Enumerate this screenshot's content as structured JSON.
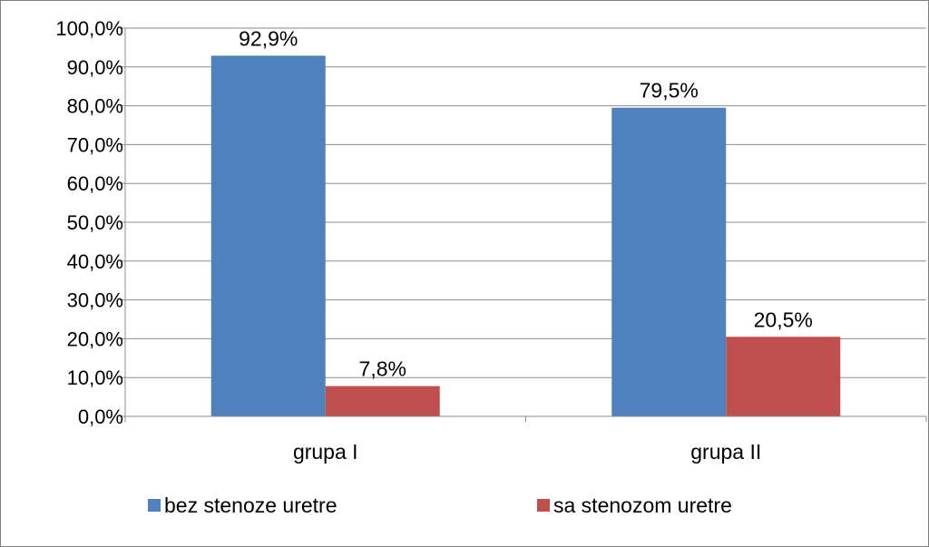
{
  "chart_data": {
    "type": "bar",
    "title": "",
    "xlabel": "",
    "ylabel": "",
    "categories": [
      "grupa I",
      "grupa II"
    ],
    "series": [
      {
        "name": "bez stenoze uretre",
        "color": "#4f81bd",
        "values": [
          92.9,
          79.5
        ],
        "labels": [
          "92,9%",
          "79,5%"
        ]
      },
      {
        "name": "sa stenozom uretre",
        "color": "#c0504d",
        "values": [
          7.8,
          20.5
        ],
        "labels": [
          "7,8%",
          "20,5%"
        ]
      }
    ],
    "ylim": [
      0,
      100
    ],
    "yticks": [
      {
        "value": 0,
        "label": "0,0%"
      },
      {
        "value": 10,
        "label": "10,0%"
      },
      {
        "value": 20,
        "label": "20,0%"
      },
      {
        "value": 30,
        "label": "30,0%"
      },
      {
        "value": 40,
        "label": "40,0%"
      },
      {
        "value": 50,
        "label": "50,0%"
      },
      {
        "value": 60,
        "label": "60,0%"
      },
      {
        "value": 70,
        "label": "70,0%"
      },
      {
        "value": 80,
        "label": "80,0%"
      },
      {
        "value": 90,
        "label": "90,0%"
      },
      {
        "value": 100,
        "label": "100,0%"
      }
    ],
    "grid": true,
    "legend_position": "bottom"
  }
}
